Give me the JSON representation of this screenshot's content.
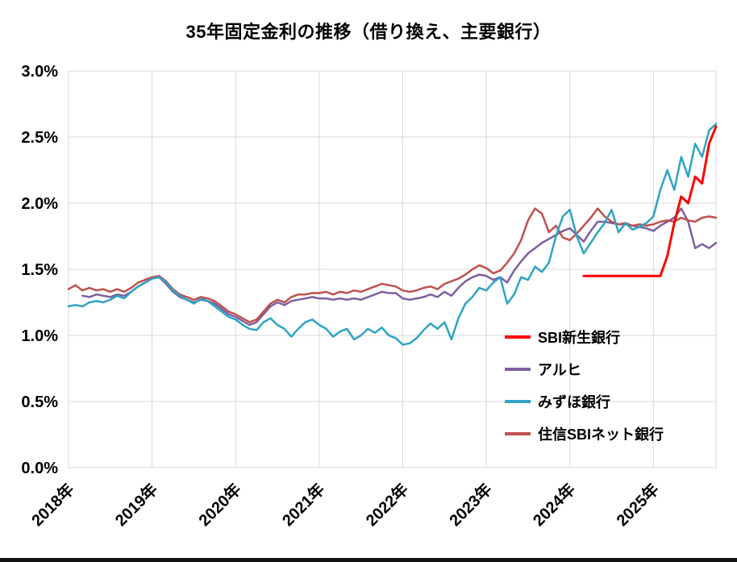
{
  "chart_data": {
    "type": "line",
    "title": "35年固定金利の推移（借り換え、主要銀行）",
    "ylim": [
      0,
      3.0
    ],
    "grid": true,
    "grid_color": "#d9d9d9",
    "legend_position": "inside-right",
    "y_ticks": [
      {
        "value": 0.0,
        "label": "0.0%"
      },
      {
        "value": 0.5,
        "label": "0.5%"
      },
      {
        "value": 1.0,
        "label": "1.0%"
      },
      {
        "value": 1.5,
        "label": "1.5%"
      },
      {
        "value": 2.0,
        "label": "2.0%"
      },
      {
        "value": 2.5,
        "label": "2.5%"
      },
      {
        "value": 3.0,
        "label": "3.0%"
      }
    ],
    "x_ticks": [
      {
        "index": 0,
        "label": "2018年"
      },
      {
        "index": 12,
        "label": "2019年"
      },
      {
        "index": 24,
        "label": "2020年"
      },
      {
        "index": 36,
        "label": "2021年"
      },
      {
        "index": 48,
        "label": "2022年"
      },
      {
        "index": 60,
        "label": "2023年"
      },
      {
        "index": 72,
        "label": "2024年"
      },
      {
        "index": 84,
        "label": "2025年"
      }
    ],
    "points_per_year": 12,
    "total_points": 94,
    "draw_order": [
      1,
      3,
      2,
      0
    ],
    "series": [
      {
        "name": "SBI新生銀行",
        "color": "#ff0000",
        "stroke_width": 3,
        "start_index": 74,
        "values": [
          1.45,
          1.45,
          1.45,
          1.45,
          1.45,
          1.45,
          1.45,
          1.45,
          1.45,
          1.45,
          1.45,
          1.45,
          1.6,
          1.85,
          2.05,
          2.0,
          2.2,
          2.15,
          2.45,
          2.58
        ]
      },
      {
        "name": "アルヒ",
        "color": "#7d60a0",
        "stroke_width": 2.5,
        "start_index": 2,
        "values": [
          1.3,
          1.29,
          1.31,
          1.3,
          1.29,
          1.31,
          1.3,
          1.33,
          1.37,
          1.4,
          1.43,
          1.44,
          1.39,
          1.33,
          1.29,
          1.27,
          1.25,
          1.27,
          1.26,
          1.24,
          1.2,
          1.16,
          1.14,
          1.11,
          1.08,
          1.1,
          1.16,
          1.22,
          1.25,
          1.23,
          1.26,
          1.27,
          1.28,
          1.29,
          1.28,
          1.28,
          1.27,
          1.28,
          1.27,
          1.28,
          1.27,
          1.29,
          1.31,
          1.33,
          1.32,
          1.32,
          1.28,
          1.27,
          1.28,
          1.29,
          1.31,
          1.29,
          1.33,
          1.3,
          1.36,
          1.41,
          1.44,
          1.46,
          1.45,
          1.42,
          1.44,
          1.4,
          1.49,
          1.56,
          1.62,
          1.66,
          1.7,
          1.73,
          1.76,
          1.79,
          1.81,
          1.76,
          1.71,
          1.79,
          1.86,
          1.86,
          1.85,
          1.84,
          1.84,
          1.83,
          1.82,
          1.81,
          1.79,
          1.83,
          1.86,
          1.89,
          1.96,
          1.86,
          1.66,
          1.69,
          1.66,
          1.7
        ]
      },
      {
        "name": "みずほ銀行",
        "color": "#2ea3c5",
        "stroke_width": 2.5,
        "start_index": 0,
        "values": [
          1.22,
          1.23,
          1.22,
          1.25,
          1.26,
          1.25,
          1.27,
          1.3,
          1.28,
          1.33,
          1.37,
          1.4,
          1.43,
          1.44,
          1.4,
          1.34,
          1.3,
          1.27,
          1.24,
          1.28,
          1.26,
          1.22,
          1.18,
          1.14,
          1.12,
          1.08,
          1.05,
          1.04,
          1.1,
          1.13,
          1.08,
          1.05,
          0.99,
          1.05,
          1.1,
          1.12,
          1.08,
          1.05,
          0.99,
          1.03,
          1.05,
          0.97,
          1.0,
          1.05,
          1.02,
          1.06,
          1.0,
          0.98,
          0.93,
          0.94,
          0.98,
          1.04,
          1.09,
          1.05,
          1.1,
          0.97,
          1.13,
          1.24,
          1.29,
          1.36,
          1.34,
          1.4,
          1.44,
          1.24,
          1.31,
          1.44,
          1.42,
          1.52,
          1.48,
          1.55,
          1.75,
          1.9,
          1.95,
          1.75,
          1.62,
          1.7,
          1.78,
          1.85,
          1.95,
          1.78,
          1.85,
          1.8,
          1.82,
          1.85,
          1.9,
          2.1,
          2.25,
          2.1,
          2.35,
          2.2,
          2.45,
          2.35,
          2.55,
          2.6
        ]
      },
      {
        "name": "住信SBIネット銀行",
        "color": "#c0504d",
        "stroke_width": 2.5,
        "start_index": 0,
        "values": [
          1.35,
          1.38,
          1.34,
          1.36,
          1.34,
          1.35,
          1.33,
          1.35,
          1.33,
          1.36,
          1.4,
          1.42,
          1.44,
          1.45,
          1.41,
          1.35,
          1.31,
          1.29,
          1.27,
          1.29,
          1.28,
          1.26,
          1.22,
          1.18,
          1.16,
          1.13,
          1.1,
          1.12,
          1.18,
          1.24,
          1.27,
          1.25,
          1.29,
          1.31,
          1.31,
          1.32,
          1.32,
          1.33,
          1.31,
          1.33,
          1.32,
          1.34,
          1.33,
          1.35,
          1.37,
          1.39,
          1.38,
          1.37,
          1.34,
          1.33,
          1.34,
          1.36,
          1.37,
          1.35,
          1.39,
          1.41,
          1.43,
          1.46,
          1.5,
          1.53,
          1.51,
          1.47,
          1.49,
          1.55,
          1.62,
          1.72,
          1.87,
          1.96,
          1.92,
          1.78,
          1.83,
          1.74,
          1.72,
          1.77,
          1.83,
          1.89,
          1.96,
          1.9,
          1.86,
          1.84,
          1.85,
          1.83,
          1.84,
          1.83,
          1.84,
          1.86,
          1.87,
          1.86,
          1.89,
          1.87,
          1.86,
          1.89,
          1.9,
          1.89
        ]
      }
    ]
  }
}
